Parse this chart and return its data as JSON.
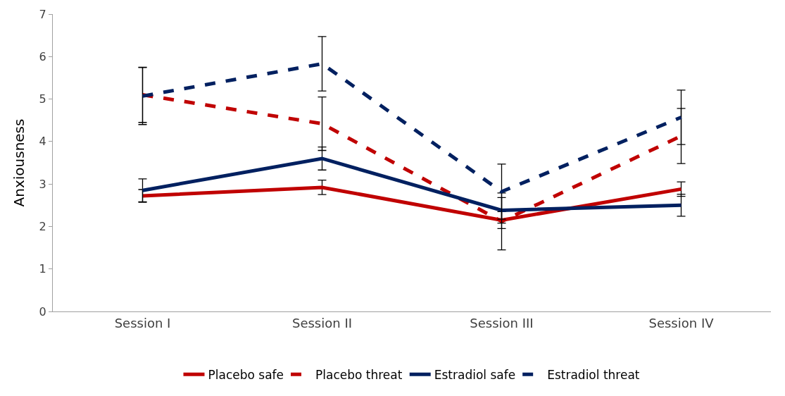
{
  "chart_data": {
    "type": "line",
    "ylabel": "Anxiousness",
    "categories": [
      "Session I",
      "Session II",
      "Session III",
      "Session IV"
    ],
    "ylim": [
      0,
      7
    ],
    "yticks": [
      0,
      1,
      2,
      3,
      4,
      5,
      6,
      7
    ],
    "legend": "bottom",
    "marker": "none",
    "series": [
      {
        "name": "Placebo safe",
        "color": "#c00000",
        "line_style": "solid",
        "values": [
          2.72,
          2.92,
          2.15,
          2.88
        ],
        "errors": [
          0.15,
          0.17,
          0.2,
          0.17
        ]
      },
      {
        "name": "Placebo threat",
        "color": "#c00000",
        "line_style": "dashed",
        "values": [
          5.1,
          4.42,
          2.12,
          4.13
        ],
        "errors": [
          0.65,
          0.63,
          0.67,
          0.65
        ]
      },
      {
        "name": "Estradiol safe",
        "color": "#002060",
        "line_style": "solid",
        "values": [
          2.85,
          3.6,
          2.38,
          2.5
        ],
        "errors": [
          0.27,
          0.27,
          0.3,
          0.26
        ]
      },
      {
        "name": "Estradiol threat",
        "color": "#002060",
        "line_style": "dashed",
        "values": [
          5.07,
          5.83,
          2.82,
          4.57
        ],
        "errors": [
          0.67,
          0.64,
          0.65,
          0.64
        ]
      }
    ]
  }
}
